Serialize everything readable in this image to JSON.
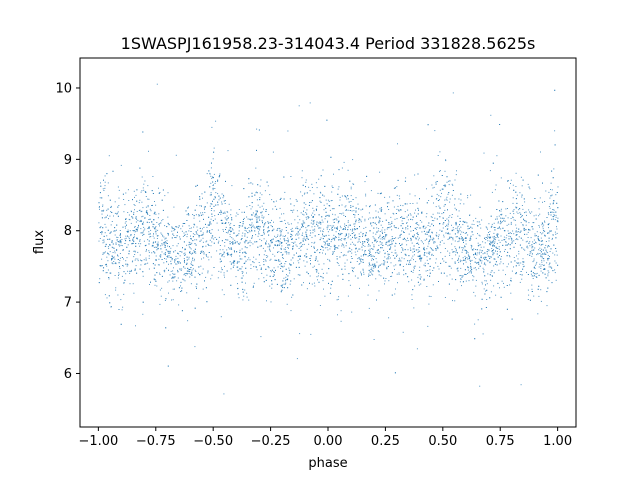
{
  "chart_data": {
    "type": "scatter",
    "title": "1SWASPJ161958.23-314043.4 Period 331828.5625s",
    "xlabel": "phase",
    "ylabel": "flux",
    "xlim": [
      -1.08,
      1.08
    ],
    "ylim": [
      5.25,
      10.42
    ],
    "x_ticks": [
      -1.0,
      -0.75,
      -0.5,
      -0.25,
      0.0,
      0.25,
      0.5,
      0.75,
      1.0
    ],
    "x_tick_labels": [
      "−1.00",
      "−0.75",
      "−0.50",
      "−0.25",
      "0.00",
      "0.25",
      "0.50",
      "0.75",
      "1.00"
    ],
    "y_ticks": [
      6,
      7,
      8,
      9,
      10
    ],
    "y_tick_labels": [
      "6",
      "7",
      "8",
      "9",
      "10"
    ],
    "grid": false,
    "point_color": "#1f77b4",
    "baseline_flux": 7.85,
    "phase_range": [
      -1.0,
      1.0
    ],
    "flux_profile": {
      "phase": [
        0.0,
        0.05,
        0.1,
        0.15,
        0.2,
        0.25,
        0.3,
        0.35,
        0.4,
        0.45,
        0.5,
        0.55,
        0.6,
        0.65,
        0.7,
        0.75,
        0.8,
        0.85,
        0.9,
        0.95,
        1.0
      ],
      "mean_flux": [
        8.1,
        7.9,
        8.0,
        7.8,
        7.75,
        7.8,
        8.0,
        7.9,
        7.7,
        7.9,
        8.35,
        7.9,
        7.75,
        7.6,
        7.7,
        7.9,
        8.1,
        7.85,
        7.7,
        7.8,
        8.1
      ],
      "spread": [
        0.55,
        0.45,
        0.5,
        0.4,
        0.4,
        0.4,
        0.5,
        0.45,
        0.4,
        0.45,
        0.6,
        0.45,
        0.4,
        0.4,
        0.4,
        0.45,
        0.5,
        0.45,
        0.4,
        0.5,
        0.55
      ]
    }
  }
}
